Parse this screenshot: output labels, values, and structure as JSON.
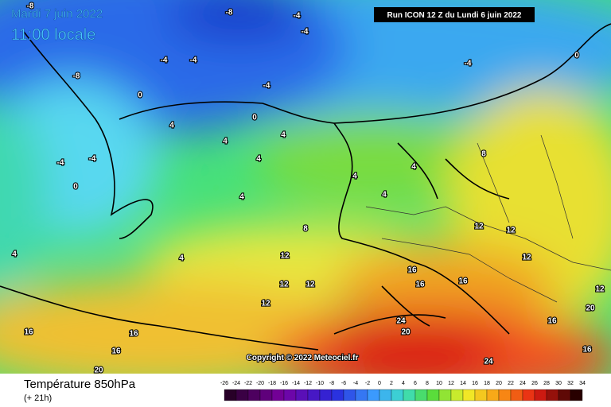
{
  "header": {
    "date": "Mardi 7 juin 2022",
    "time": "11:00 locale",
    "run": "Run ICON 12 Z du Lundi 6 juin 2022"
  },
  "copyright": "Copyright © 2022 Meteociel.fr",
  "footer": {
    "parameter": "Température 850hPa",
    "lead_time": "(+ 21h)"
  },
  "scale": [
    -26,
    -24,
    -22,
    -20,
    -18,
    -16,
    -14,
    -12,
    -10,
    -8,
    -6,
    -4,
    -2,
    0,
    2,
    4,
    6,
    8,
    10,
    12,
    14,
    16,
    18,
    20,
    22,
    24,
    26,
    28,
    30,
    32,
    34
  ],
  "map_labels": [
    -8,
    -4,
    -4,
    -4,
    -4,
    -4,
    0,
    -4,
    0,
    4,
    0,
    4,
    4,
    4,
    -4,
    0,
    -4,
    4,
    4,
    8,
    12,
    8,
    4,
    4,
    12,
    12,
    12,
    16,
    16,
    16,
    12,
    12,
    12,
    16,
    16,
    16,
    20,
    24,
    20,
    16,
    24,
    16,
    12,
    20,
    -8,
    -8,
    4,
    4
  ]
}
